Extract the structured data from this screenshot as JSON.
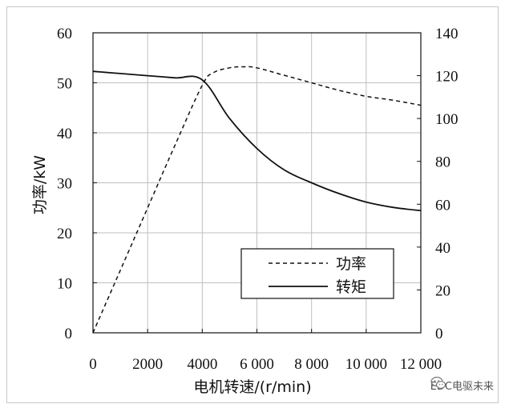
{
  "chart_data": {
    "type": "line",
    "xlabel": "电机转速/(r/min)",
    "ylabel_left": "功率/kW",
    "ylabel_right": "",
    "xlim": [
      0,
      12000
    ],
    "ylim_left": [
      0,
      60
    ],
    "ylim_right": [
      0,
      140
    ],
    "x_ticks": [
      "0",
      "2000",
      "4000",
      "6 000",
      "8 000",
      "10 000",
      "12 000"
    ],
    "x_tick_values": [
      0,
      2000,
      4000,
      6000,
      8000,
      10000,
      12000
    ],
    "y_left_ticks": [
      "0",
      "10",
      "20",
      "30",
      "40",
      "50",
      "60"
    ],
    "y_left_tick_values": [
      0,
      10,
      20,
      30,
      40,
      50,
      60
    ],
    "y_right_ticks": [
      "0",
      "20",
      "40",
      "60",
      "80",
      "100",
      "120",
      "140"
    ],
    "y_right_tick_values": [
      0,
      20,
      40,
      60,
      80,
      100,
      120,
      140
    ],
    "grid": true,
    "legend_position": "bottom-right",
    "series": [
      {
        "name": "功率",
        "axis": "left",
        "style": "dashed",
        "x": [
          0,
          1000,
          2000,
          3000,
          4000,
          4400,
          5000,
          5500,
          6000,
          7000,
          8000,
          9000,
          10000,
          11000,
          12000
        ],
        "y": [
          0,
          12.5,
          25,
          37.5,
          49.5,
          52,
          53,
          53.2,
          53,
          51.5,
          50,
          48.5,
          47.3,
          46.5,
          45.5
        ]
      },
      {
        "name": "转矩",
        "axis": "right",
        "style": "solid",
        "x": [
          0,
          1000,
          2000,
          3000,
          4000,
          5000,
          6000,
          7000,
          8000,
          9000,
          10000,
          11000,
          12000
        ],
        "y": [
          122,
          121,
          120,
          119,
          118,
          100,
          86,
          76,
          70,
          65,
          61,
          58.5,
          57
        ]
      }
    ]
  },
  "watermark": {
    "text": "EDC电驱未来",
    "icon": "wechat-icon"
  },
  "colors": {
    "line": "#111111",
    "grid": "#bfbfbf",
    "frame": "#c8c8c8"
  }
}
